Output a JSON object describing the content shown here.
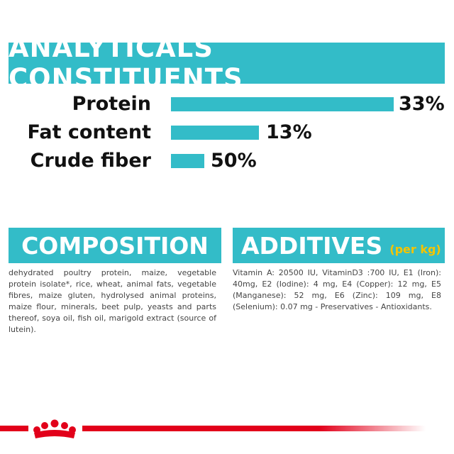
{
  "analyticals": {
    "title": "ANALYTICALS CONSTITUENTS",
    "rows": [
      {
        "label": "Protein",
        "value": "33%"
      },
      {
        "label": "Fat content",
        "value": "13%"
      },
      {
        "label": "Crude fiber",
        "value": "50%"
      }
    ]
  },
  "composition": {
    "title": "COMPOSITION",
    "text": "dehydrated poultry protein, maize, vegetable protein isolate*, rice, wheat, animal fats, vegetable fibres, maize gluten, hydrolysed animal proteins, maize flour, minerals, beet pulp, yeasts and parts thereof, soya oil, fish oil, marigold extract (source of lutein)."
  },
  "additives": {
    "title": "ADDITIVES",
    "unit": "(per kg)",
    "text": "Vitamin A: 20500 IU, VitaminD3 :700 IU, E1 (Iron): 40mg, E2 (Iodine): 4 mg, E4 (Copper): 12 mg, E5 (Manganese): 52 mg, E6 (Zinc): 109 mg, E8 (Selenium): 0.07 mg - Preservatives - Antioxidants."
  }
}
